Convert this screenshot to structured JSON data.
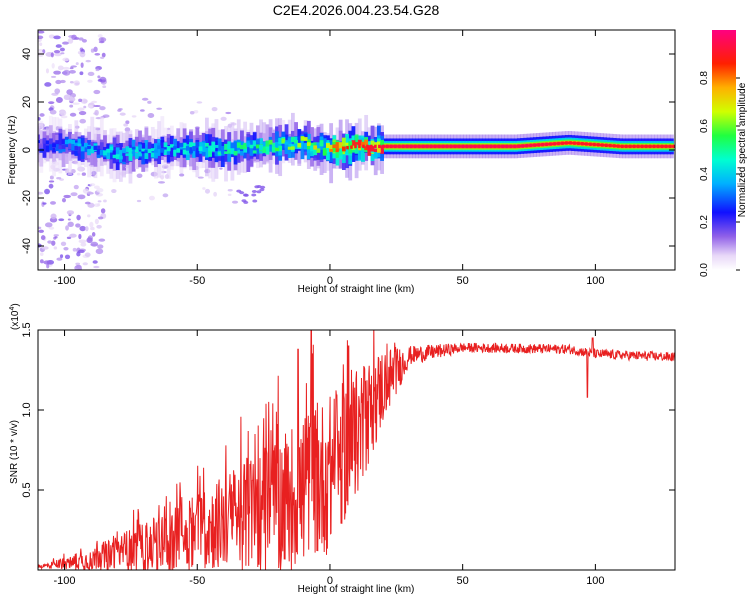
{
  "chart_data": [
    {
      "type": "heatmap",
      "title": "C2E4.2026.004.23.54.G28",
      "xlabel": "Height of straight line (km)",
      "ylabel": "Frequency (Hz)",
      "xlim": [
        -110,
        130
      ],
      "ylim": [
        -50,
        50
      ],
      "x_ticks": [
        -100,
        -50,
        0,
        50,
        100
      ],
      "y_ticks": [
        -40,
        -20,
        0,
        20,
        40
      ],
      "colorbar": {
        "label": "Normalized spectral amplitude",
        "range": [
          0,
          1
        ],
        "ticks": [
          "0.0",
          "0.2",
          "0.4",
          "0.6",
          "0.8"
        ]
      },
      "ridge": {
        "description_points": [
          {
            "x": -105,
            "f": 2.0,
            "amp": 0.3
          },
          {
            "x": -95,
            "f": 1.5,
            "amp": 0.4
          },
          {
            "x": -80,
            "f": -1.5,
            "amp": 0.45
          },
          {
            "x": -60,
            "f": 0.5,
            "amp": 0.45
          },
          {
            "x": -40,
            "f": 0.0,
            "amp": 0.5
          },
          {
            "x": -20,
            "f": 2.0,
            "amp": 0.6
          },
          {
            "x": -10,
            "f": 3.0,
            "amp": 0.65
          },
          {
            "x": 0,
            "f": 0.0,
            "amp": 0.8
          },
          {
            "x": 10,
            "f": 1.5,
            "amp": 0.9
          },
          {
            "x": 30,
            "f": 1.5,
            "amp": 0.95
          },
          {
            "x": 70,
            "f": 1.5,
            "amp": 0.95
          },
          {
            "x": 90,
            "f": 3.0,
            "amp": 0.9
          },
          {
            "x": 110,
            "f": 1.5,
            "amp": 0.9
          },
          {
            "x": 130,
            "f": 1.5,
            "amp": 0.9
          }
        ],
        "side_blob": {
          "x_range": [
            -35,
            -25
          ],
          "f_range": [
            -22,
            -15
          ],
          "amp": 0.15
        }
      }
    },
    {
      "type": "line",
      "xlabel": "Height of straight line (km)",
      "ylabel": "SNR (10 * v/v)",
      "y_multiplier": "(x10^4)",
      "y_multiplier_base": "(x10",
      "y_multiplier_exp": "4",
      "y_multiplier_close": ")",
      "xlim": [
        -110,
        130
      ],
      "ylim": [
        0,
        1.5
      ],
      "x_ticks": [
        -100,
        -50,
        0,
        50,
        100
      ],
      "y_ticks": [
        "0.5",
        "1.0",
        "1.5"
      ],
      "color": "#e82020",
      "envelope": [
        {
          "x": -110,
          "base": 0.02,
          "amp": 0.01
        },
        {
          "x": -95,
          "base": 0.05,
          "amp": 0.05
        },
        {
          "x": -80,
          "base": 0.1,
          "amp": 0.12
        },
        {
          "x": -60,
          "base": 0.18,
          "amp": 0.2
        },
        {
          "x": -40,
          "base": 0.3,
          "amp": 0.3
        },
        {
          "x": -20,
          "base": 0.4,
          "amp": 0.45
        },
        {
          "x": 0,
          "base": 0.6,
          "amp": 0.5
        },
        {
          "x": 10,
          "base": 0.85,
          "amp": 0.4
        },
        {
          "x": 20,
          "base": 1.15,
          "amp": 0.25
        },
        {
          "x": 30,
          "base": 1.34,
          "amp": 0.06
        },
        {
          "x": 50,
          "base": 1.39,
          "amp": 0.03
        },
        {
          "x": 90,
          "base": 1.38,
          "amp": 0.03
        },
        {
          "x": 100,
          "base": 1.35,
          "amp": 0.03
        },
        {
          "x": 130,
          "base": 1.33,
          "amp": 0.03
        }
      ],
      "spikes": [
        {
          "x": -7,
          "y": 1.5
        },
        {
          "x": -12,
          "y": 1.38
        },
        {
          "x": 7,
          "y": 1.4
        },
        {
          "x": 97,
          "y": 1.08
        },
        {
          "x": 99,
          "y": 1.45
        }
      ]
    }
  ]
}
